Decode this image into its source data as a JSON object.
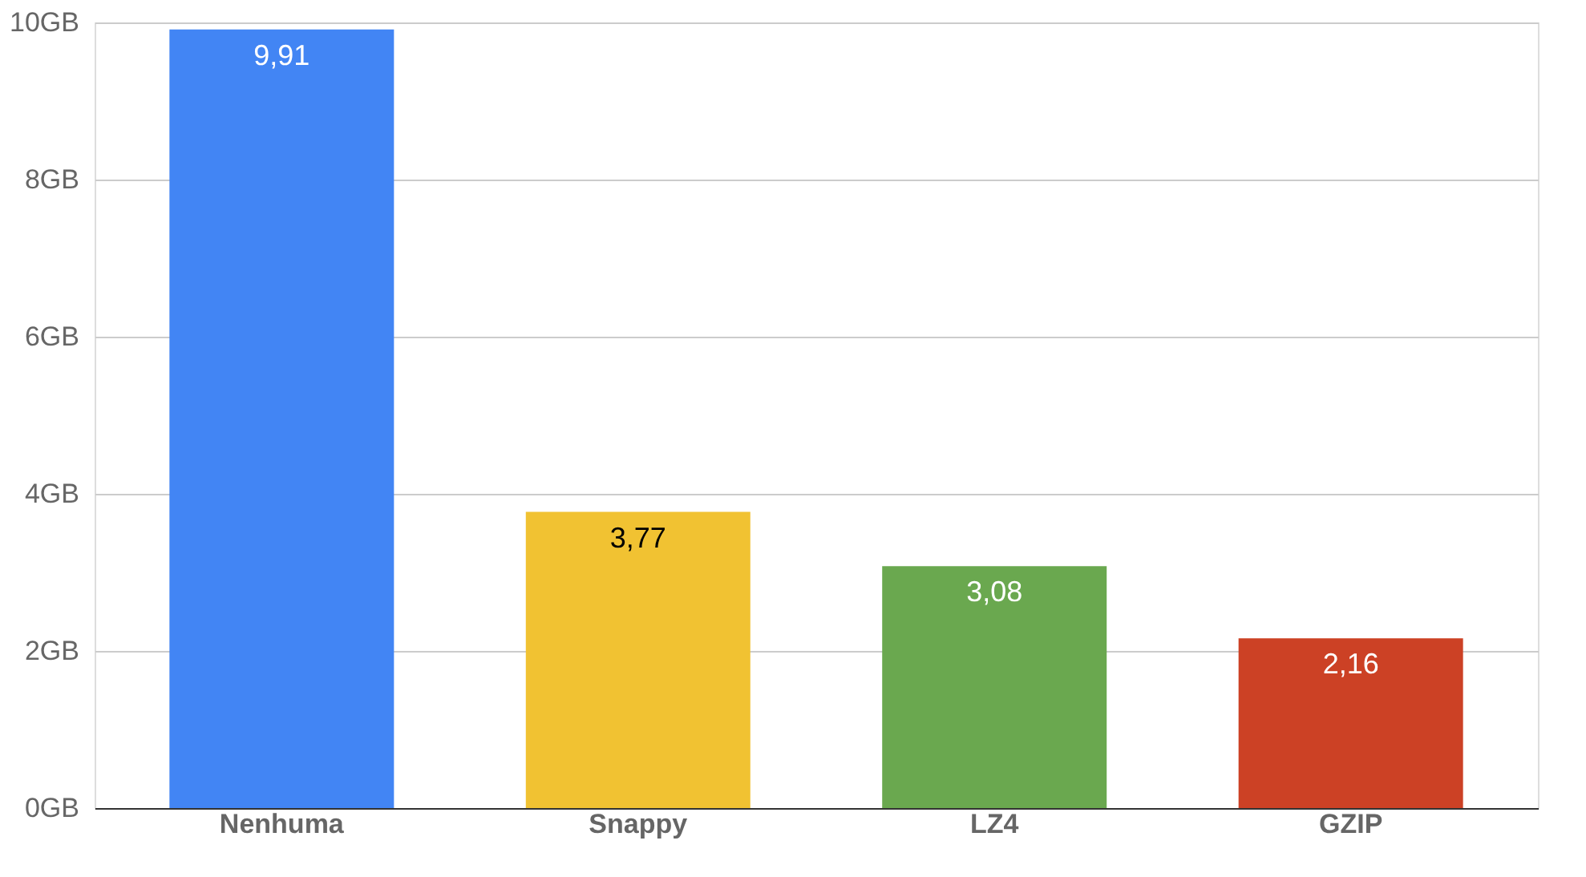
{
  "chart_data": {
    "type": "bar",
    "categories": [
      "Nenhuma",
      "Snappy",
      "LZ4",
      "GZIP"
    ],
    "values": [
      9.91,
      3.77,
      3.08,
      2.16
    ],
    "colors": [
      "#4285f4",
      "#f1c232",
      "#6aa84f",
      "#cc4125"
    ],
    "value_labels": [
      "9,91",
      "3,77",
      "3,08",
      "2,16"
    ],
    "ylim": [
      0,
      10
    ],
    "yticks": [
      {
        "value": 0,
        "label": "0GB"
      },
      {
        "value": 2,
        "label": "2GB"
      },
      {
        "value": 4,
        "label": "4GB"
      },
      {
        "value": 6,
        "label": "6GB"
      },
      {
        "value": 8,
        "label": "8GB"
      },
      {
        "value": 10,
        "label": "10GB"
      }
    ],
    "grid": "y"
  }
}
